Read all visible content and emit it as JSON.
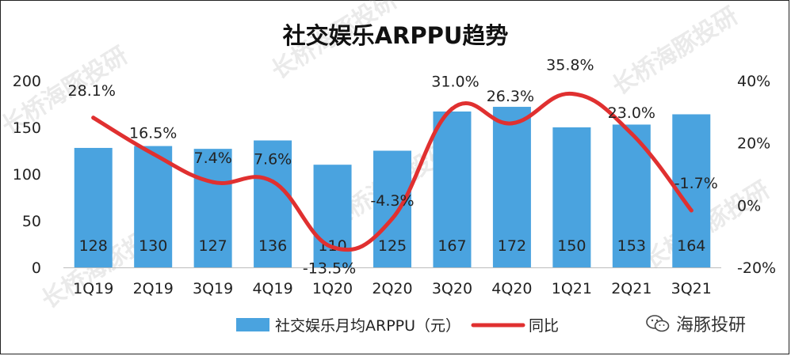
{
  "chart_data": {
    "type": "bar",
    "title": "社交娱乐ARPPU趋势",
    "categories": [
      "1Q19",
      "2Q19",
      "3Q19",
      "4Q19",
      "1Q20",
      "2Q20",
      "3Q20",
      "4Q20",
      "1Q21",
      "2Q21",
      "3Q21"
    ],
    "series": [
      {
        "name": "社交娱乐月均ARPPU（元）",
        "type": "bar",
        "axis": "left",
        "values": [
          128,
          130,
          127,
          136,
          110,
          125,
          167,
          172,
          150,
          153,
          164
        ],
        "labels": [
          "128",
          "130",
          "127",
          "136",
          "110",
          "125",
          "167",
          "172",
          "150",
          "153",
          "164"
        ],
        "color": "#4aa3df"
      },
      {
        "name": "同比",
        "type": "line",
        "axis": "right",
        "values": [
          28.1,
          16.5,
          7.4,
          7.6,
          -13.5,
          -4.3,
          31.0,
          26.3,
          35.8,
          23.0,
          -1.7
        ],
        "labels": [
          "28.1%",
          "16.5%",
          "7.4%",
          "7.6%",
          "-13.5%",
          "-4.3%",
          "31.0%",
          "26.3%",
          "35.8%",
          "23.0%",
          "-1.7%"
        ],
        "color": "#e03030"
      }
    ],
    "ylim_left": [
      0,
      200
    ],
    "yticks_left": [
      "0",
      "50",
      "100",
      "150",
      "200"
    ],
    "ylim_right": [
      -20,
      40
    ],
    "yticks_right": [
      "-20%",
      "0%",
      "20%",
      "40%"
    ],
    "legend_position": "bottom"
  },
  "brand": {
    "text": "海豚投研"
  },
  "watermark": {
    "text": "长桥海豚投研"
  }
}
